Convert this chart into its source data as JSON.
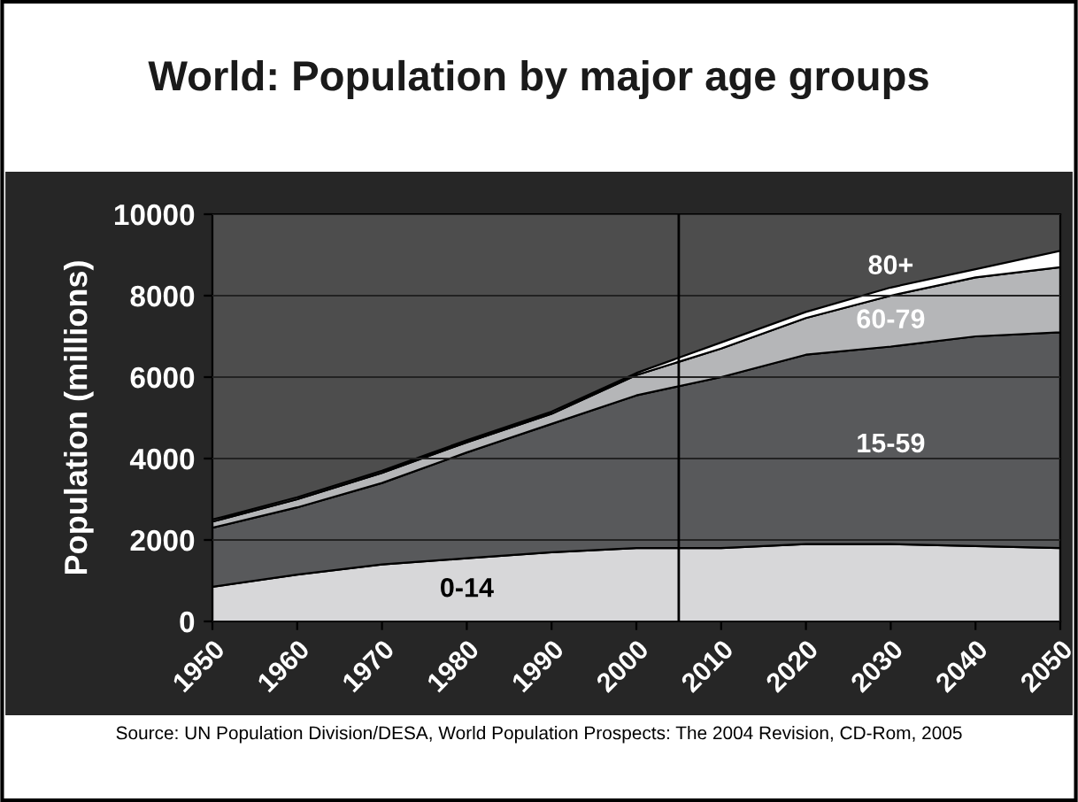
{
  "chart_data": {
    "type": "area",
    "stacked": true,
    "title": "World: Population by major age groups",
    "ylabel": "Population (millions)",
    "x": [
      1950,
      1960,
      1970,
      1980,
      1990,
      2000,
      2010,
      2020,
      2030,
      2040,
      2050
    ],
    "series": [
      {
        "name": "0-14",
        "color": "#d7d7d9",
        "values": [
          850,
          1150,
          1400,
          1550,
          1700,
          1800,
          1800,
          1900,
          1900,
          1850,
          1800
        ]
      },
      {
        "name": "15-59",
        "color": "#58595b",
        "values": [
          1450,
          1650,
          2000,
          2600,
          3150,
          3750,
          4200,
          4650,
          4850,
          5150,
          5300
        ]
      },
      {
        "name": "60-79",
        "color": "#b5b6b8",
        "values": [
          150,
          200,
          250,
          250,
          250,
          500,
          700,
          900,
          1250,
          1450,
          1600
        ]
      },
      {
        "name": "80+",
        "color": "#ffffff",
        "values": [
          50,
          50,
          50,
          50,
          50,
          50,
          150,
          150,
          200,
          200,
          400
        ]
      }
    ],
    "xlim": [
      1950,
      2050
    ],
    "xticks": [
      1950,
      1960,
      1970,
      1980,
      1990,
      2000,
      2010,
      2020,
      2030,
      2040,
      2050
    ],
    "ylim": [
      0,
      10000
    ],
    "yticks": [
      0,
      2000,
      4000,
      6000,
      8000,
      10000
    ],
    "grid": "y",
    "ref_lines": [
      {
        "axis": "x",
        "value": 2005,
        "color": "#000000"
      }
    ],
    "annotations": [
      "Source: UN Population Division/DESA, World Population Prospects: The 2004 Revision, CD-Rom, 2005"
    ]
  }
}
